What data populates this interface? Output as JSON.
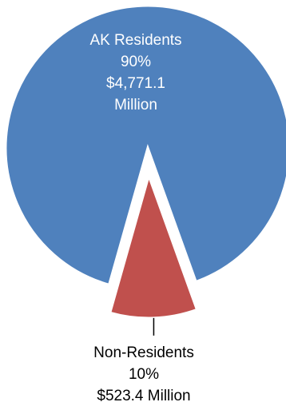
{
  "chart_data": {
    "type": "pie",
    "slices": [
      {
        "label": "AK Residents",
        "percent_text": "90%",
        "amount_text": "$4,771.1",
        "amount_unit_text": "Million",
        "value": 4771.1,
        "percent": 90,
        "color": "#4F81BD",
        "exploded": false
      },
      {
        "label": "Non-Residents",
        "percent_text": "10%",
        "amount_text": "$523.4 Million",
        "value": 523.4,
        "percent": 10,
        "color": "#C0504D",
        "exploded": true
      }
    ]
  }
}
